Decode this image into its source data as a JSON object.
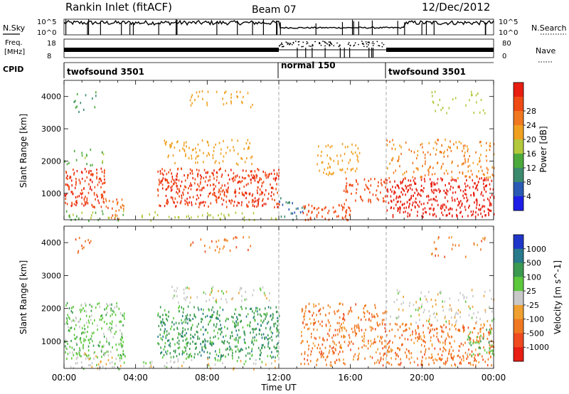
{
  "header": {
    "station": "Rankin Inlet (fitACF)",
    "beam": "Beam 07",
    "date": "12/Dec/2012"
  },
  "nsky": {
    "label": "N.Sky",
    "tick_top": "10^5",
    "tick_bottom": "10^0",
    "right_label": "N.Search",
    "right_tick_top": "10^5",
    "right_tick_bottom": "10^0"
  },
  "freq": {
    "label_line1": "Freq.",
    "label_line2": "[MHz]",
    "tick_top": "18",
    "tick_bottom": "8",
    "right_label": "Nave",
    "right_tick_top": "80",
    "right_tick_bottom": "0"
  },
  "cpid": {
    "label": "CPID",
    "modes": [
      {
        "name": "twofsound 3501",
        "start_hour": 0,
        "end_hour": 12
      },
      {
        "name": "normal 150",
        "start_hour": 12,
        "end_hour": 18
      },
      {
        "name": "twofsound 3501",
        "start_hour": 18,
        "end_hour": 24
      }
    ]
  },
  "xaxis": {
    "label": "Time UT",
    "ticks": [
      "00:00",
      "04:00",
      "08:00",
      "12:00",
      "16:00",
      "20:00",
      "00:00"
    ],
    "range_hours": [
      0,
      24
    ]
  },
  "power_panel": {
    "ylabel": "Slant Range [km]",
    "yticks": [
      "1000",
      "2000",
      "3000",
      "4000"
    ],
    "colorbar_label": "Power [dB]",
    "colorbar_ticks": [
      "4",
      "8",
      "12",
      "16",
      "20",
      "24",
      "28"
    ],
    "colors": [
      "#1e1ee8",
      "#2a5ab4",
      "#3c8a6e",
      "#4caa3c",
      "#b4c83c",
      "#f0a020",
      "#f07820",
      "#f04a14",
      "#e81e10"
    ]
  },
  "velocity_panel": {
    "ylabel": "Slant Range [km]",
    "yticks": [
      "1000",
      "2000",
      "3000",
      "4000"
    ],
    "colorbar_label": "Velocity [m s^-1]",
    "colorbar_ticks": [
      "1000",
      "500",
      "100",
      "25",
      "-25",
      "-100",
      "-500",
      "-1000"
    ],
    "colors": [
      "#2036c8",
      "#287a8c",
      "#3c9a50",
      "#5cc83c",
      "#c8c8c8",
      "#f0a030",
      "#f07820",
      "#f04a20",
      "#e81e14"
    ]
  },
  "chart_data": [
    {
      "type": "heatmap",
      "title": "Power",
      "xlabel": "Time UT",
      "ylabel": "Slant Range [km]",
      "x_range_hours": [
        0,
        24
      ],
      "ylim": [
        180,
        4500
      ],
      "colorbar": {
        "label": "Power [dB]",
        "range": [
          0,
          32
        ],
        "ticks": [
          4,
          8,
          12,
          16,
          20,
          24,
          28
        ]
      },
      "scatter_regions": [
        {
          "t0": 0.0,
          "t1": 2.3,
          "r0": 600,
          "r1": 1800,
          "level": 26,
          "density": 0.9
        },
        {
          "t0": 2.3,
          "t1": 3.4,
          "r0": 200,
          "r1": 900,
          "level": 22,
          "density": 0.6
        },
        {
          "t0": 0.0,
          "t1": 3.4,
          "r0": 180,
          "r1": 500,
          "level": 12,
          "density": 0.4
        },
        {
          "t0": 0.5,
          "t1": 1.8,
          "r0": 3500,
          "r1": 4200,
          "level": 8,
          "density": 0.25
        },
        {
          "t0": 0.0,
          "t1": 2.3,
          "r0": 1900,
          "r1": 2400,
          "level": 12,
          "density": 0.3
        },
        {
          "t0": 5.2,
          "t1": 12.0,
          "r0": 600,
          "r1": 1800,
          "level": 26,
          "density": 0.9
        },
        {
          "t0": 5.5,
          "t1": 10.5,
          "r0": 1900,
          "r1": 2700,
          "level": 18,
          "density": 0.4
        },
        {
          "t0": 7.0,
          "t1": 10.5,
          "r0": 3700,
          "r1": 4200,
          "level": 18,
          "density": 0.35
        },
        {
          "t0": 4.3,
          "t1": 12.0,
          "r0": 180,
          "r1": 450,
          "level": 14,
          "density": 0.35
        },
        {
          "t0": 12.0,
          "t1": 13.4,
          "r0": 200,
          "r1": 900,
          "level": 6,
          "density": 0.4
        },
        {
          "t0": 13.3,
          "t1": 16.0,
          "r0": 200,
          "r1": 700,
          "level": 24,
          "density": 0.8
        },
        {
          "t0": 14.0,
          "t1": 16.5,
          "r0": 1600,
          "r1": 2600,
          "level": 18,
          "density": 0.45
        },
        {
          "t0": 15.6,
          "t1": 18.0,
          "r0": 700,
          "r1": 1500,
          "level": 24,
          "density": 0.6
        },
        {
          "t0": 18.0,
          "t1": 24.0,
          "r0": 300,
          "r1": 1500,
          "level": 28,
          "density": 0.9
        },
        {
          "t0": 18.0,
          "t1": 24.0,
          "r0": 1500,
          "r1": 2700,
          "level": 20,
          "density": 0.45
        },
        {
          "t0": 20.5,
          "t1": 23.5,
          "r0": 3500,
          "r1": 4200,
          "level": 14,
          "density": 0.25
        }
      ]
    },
    {
      "type": "heatmap",
      "title": "Velocity",
      "xlabel": "Time UT",
      "ylabel": "Slant Range [km]",
      "x_range_hours": [
        0,
        24
      ],
      "ylim": [
        180,
        4500
      ],
      "colorbar": {
        "label": "Velocity [m s^-1]",
        "ticks": [
          1000,
          500,
          100,
          25,
          -25,
          -100,
          -500,
          -1000
        ]
      },
      "scatter_regions": [
        {
          "t0": 0.0,
          "t1": 3.4,
          "r0": 500,
          "r1": 2200,
          "level": 3,
          "density": 0.75
        },
        {
          "t0": 0.0,
          "t1": 3.4,
          "r0": 180,
          "r1": 700,
          "level": 4,
          "density": 0.5
        },
        {
          "t0": 0.5,
          "t1": 1.8,
          "r0": 3700,
          "r1": 4200,
          "level": 6,
          "density": 0.3
        },
        {
          "t0": 5.2,
          "t1": 12.0,
          "r0": 500,
          "r1": 2100,
          "level": 2,
          "density": 0.85
        },
        {
          "t0": 6.0,
          "t1": 11.5,
          "r0": 2200,
          "r1": 2700,
          "level": 4,
          "density": 0.4
        },
        {
          "t0": 7.0,
          "t1": 10.5,
          "r0": 3700,
          "r1": 4200,
          "level": 6,
          "density": 0.3
        },
        {
          "t0": 4.3,
          "t1": 12.0,
          "r0": 180,
          "r1": 500,
          "level": 4,
          "density": 0.35
        },
        {
          "t0": 13.2,
          "t1": 18.0,
          "r0": 300,
          "r1": 2200,
          "level": 6,
          "density": 0.65
        },
        {
          "t0": 18.0,
          "t1": 24.0,
          "r0": 300,
          "r1": 1600,
          "level": 6,
          "density": 0.75
        },
        {
          "t0": 18.0,
          "t1": 24.0,
          "r0": 1600,
          "r1": 2600,
          "level": 4,
          "density": 0.35
        },
        {
          "t0": 22.5,
          "t1": 24.0,
          "r0": 600,
          "r1": 1400,
          "level": 3,
          "density": 0.6
        },
        {
          "t0": 20.5,
          "t1": 23.5,
          "r0": 3600,
          "r1": 4200,
          "level": 6,
          "density": 0.25
        }
      ]
    }
  ]
}
